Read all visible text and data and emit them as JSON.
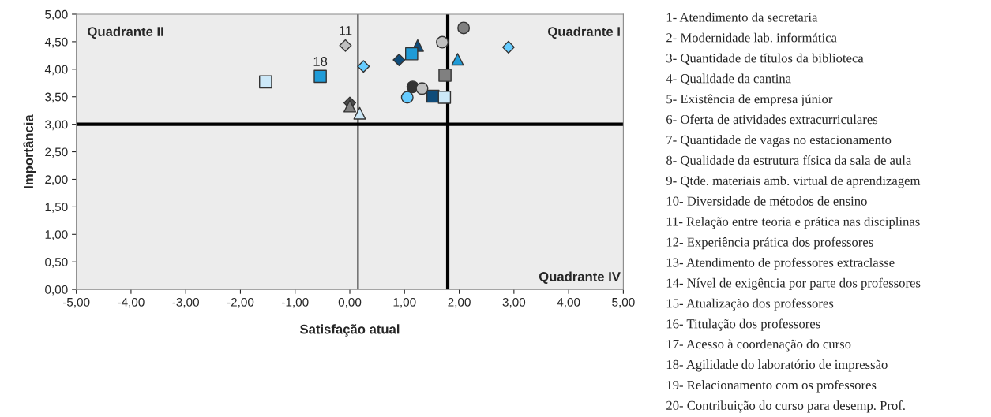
{
  "chart_data": [
    {
      "type": "scatter",
      "xlabel": "Satisfação atual",
      "ylabel": "Importância",
      "xlim": [
        -5,
        5
      ],
      "ylim": [
        0,
        5
      ],
      "xticks": [
        {
          "value": -5,
          "label": "-5,00"
        },
        {
          "value": -4,
          "label": "-4,00"
        },
        {
          "value": -3,
          "label": "-3,00"
        },
        {
          "value": -2,
          "label": "-2,00"
        },
        {
          "value": -1,
          "label": "-1,00"
        },
        {
          "value": 0,
          "label": "0,00"
        },
        {
          "value": 1,
          "label": "1,00"
        },
        {
          "value": 2,
          "label": "2,00"
        },
        {
          "value": 3,
          "label": "3,00"
        },
        {
          "value": 4,
          "label": "4,00"
        },
        {
          "value": 5,
          "label": "5,00"
        }
      ],
      "yticks": [
        {
          "value": 0,
          "label": "0,00"
        },
        {
          "value": 0.5,
          "label": "0,50"
        },
        {
          "value": 1,
          "label": "1,00"
        },
        {
          "value": 1.5,
          "label": "1,50"
        },
        {
          "value": 2,
          "label": "2,00"
        },
        {
          "value": 2.5,
          "label": "2,50"
        },
        {
          "value": 3,
          "label": "3,00"
        },
        {
          "value": 3.5,
          "label": "3,50"
        },
        {
          "value": 4,
          "label": "4,00"
        },
        {
          "value": 4.5,
          "label": "4,50"
        },
        {
          "value": 5,
          "label": "5,00"
        }
      ],
      "grid": false,
      "legend": false,
      "series": [
        {
          "marker": "diamond",
          "x": [
            -0.08,
            0.25,
            0.9,
            2.9,
            0.0
          ],
          "values": [
            4.43,
            4.05,
            4.17,
            4.4,
            3.39
          ],
          "colors": [
            "#c0c0c0",
            "#66ccff",
            "#0f4c7a",
            "#66ccff",
            "#4d4d4d"
          ]
        },
        {
          "marker": "triangle",
          "x": [
            0.0,
            0.18,
            1.24,
            1.97
          ],
          "values": [
            3.33,
            3.2,
            4.43,
            4.18
          ],
          "colors": [
            "#808080",
            "#cce8f8",
            "#0f4c7a",
            "#1f9bd7"
          ]
        },
        {
          "marker": "square",
          "x": [
            -1.54,
            -0.54,
            1.13,
            1.52,
            1.73,
            1.74
          ],
          "values": [
            3.77,
            3.87,
            4.28,
            3.51,
            3.49,
            3.89
          ],
          "colors": [
            "#cce8f8",
            "#1f9bd7",
            "#1f9bd7",
            "#0f4c7a",
            "#cce8f8",
            "#808080"
          ]
        },
        {
          "marker": "circle",
          "x": [
            2.08,
            1.69,
            1.15,
            1.32,
            1.05
          ],
          "values": [
            4.75,
            4.49,
            3.68,
            3.65,
            3.49
          ],
          "colors": [
            "#808080",
            "#c0c0c0",
            "#333333",
            "#c0c0c0",
            "#66ccff"
          ]
        }
      ],
      "ref_lines": [
        {
          "axis": "y",
          "value": 3.0,
          "color": "#000000"
        },
        {
          "axis": "x",
          "value": 1.79,
          "color": "#000000"
        },
        {
          "axis": "x",
          "value": 0.15,
          "color": "#000000"
        }
      ],
      "annotations": [
        "Quadrante II",
        "Quadrante I",
        "Quadrante IV",
        {
          "text": "11",
          "x": -0.08,
          "y": 4.43
        },
        {
          "text": "18",
          "x": -0.54,
          "y": 3.87
        }
      ]
    },
    {
      "type": "other",
      "annotations": [
        "1- Atendimento da secretaria",
        "2- Modernidade lab. informática",
        "3- Quantidade de títulos da biblioteca",
        "4- Qualidade da cantina",
        "5- Existência de empresa júnior",
        "6- Oferta de atividades extracurriculares",
        "7- Quantidade de vagas no estacionamento",
        "8- Qualidade da estrutura física da sala de aula",
        "9- Qtde. materiais amb. virtual de aprendizagem",
        "10- Diversidade de métodos de ensino",
        "11- Relação entre teoria e prática nas disciplinas",
        "12- Experiência prática dos professores",
        "13- Atendimento de professores extraclasse",
        "14- Nível de exigência por parte dos professores",
        "15- Atualização dos professores",
        "16- Titulação dos professores",
        "17- Acesso à coordenação do curso",
        "18- Agilidade do laboratório de impressão",
        "19- Relacionamento com os professores",
        "20- Contribuição do curso para desemp. Prof."
      ]
    }
  ]
}
